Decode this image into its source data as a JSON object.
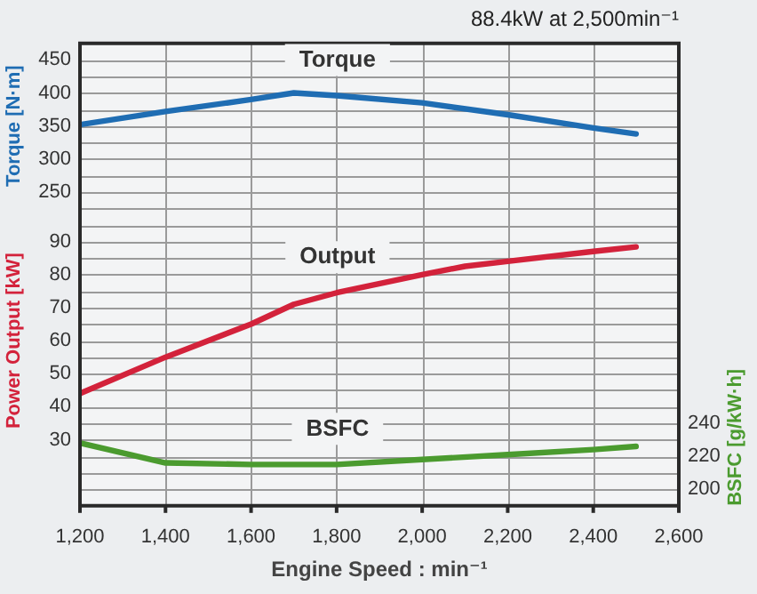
{
  "chart_data": {
    "type": "line",
    "title": "88.4kW at 2,500min⁻¹",
    "xlabel": "Engine Speed : min⁻¹",
    "ylabel": "Torque [N·m]",
    "y2label": "BSFC [g/kW·h]",
    "y3label": "Power Output [kW]",
    "xlim": [
      1200,
      2600
    ],
    "xticks": [
      {
        "value": 1200,
        "label": "1,200"
      },
      {
        "value": 1400,
        "label": "1,400"
      },
      {
        "value": 1600,
        "label": "1,600"
      },
      {
        "value": 1800,
        "label": "1,800"
      },
      {
        "value": 2000,
        "label": "2,000"
      },
      {
        "value": 2200,
        "label": "2,200"
      },
      {
        "value": 2400,
        "label": "2,400"
      },
      {
        "value": 2600,
        "label": "2,600"
      }
    ],
    "ylim": [
      -225,
      475
    ],
    "yticks": [
      250,
      300,
      350,
      400,
      450
    ],
    "y3lim": [
      10,
      150
    ],
    "y3ticks": [
      30,
      40,
      50,
      60,
      70,
      80,
      90
    ],
    "y2lim": [
      190,
      470
    ],
    "y2ticks": [
      200,
      220,
      240
    ],
    "grid": true,
    "legend": false,
    "marker": "none",
    "line_style": "solid",
    "series": [
      {
        "name": "Torque",
        "color": "#1f6db3",
        "axis": "y",
        "x": [
          1200,
          1400,
          1600,
          1700,
          1800,
          2000,
          2200,
          2400,
          2500
        ],
        "values": [
          352,
          372,
          390,
          400,
          396,
          385,
          367,
          347,
          338
        ]
      },
      {
        "name": "Output",
        "color": "#d3223b",
        "axis": "y3",
        "x": [
          1200,
          1400,
          1600,
          1700,
          1800,
          2000,
          2100,
          2200,
          2400,
          2500
        ],
        "values": [
          44,
          55,
          65,
          71,
          74.5,
          80,
          82.5,
          84,
          87,
          88.4
        ]
      },
      {
        "name": "BSFC",
        "color": "#4b9b2f",
        "axis": "y2",
        "x": [
          1200,
          1400,
          1600,
          1800,
          2000,
          2200,
          2400,
          2500
        ],
        "values": [
          228,
          216,
          215,
          215,
          218,
          221,
          224,
          226
        ]
      }
    ]
  }
}
